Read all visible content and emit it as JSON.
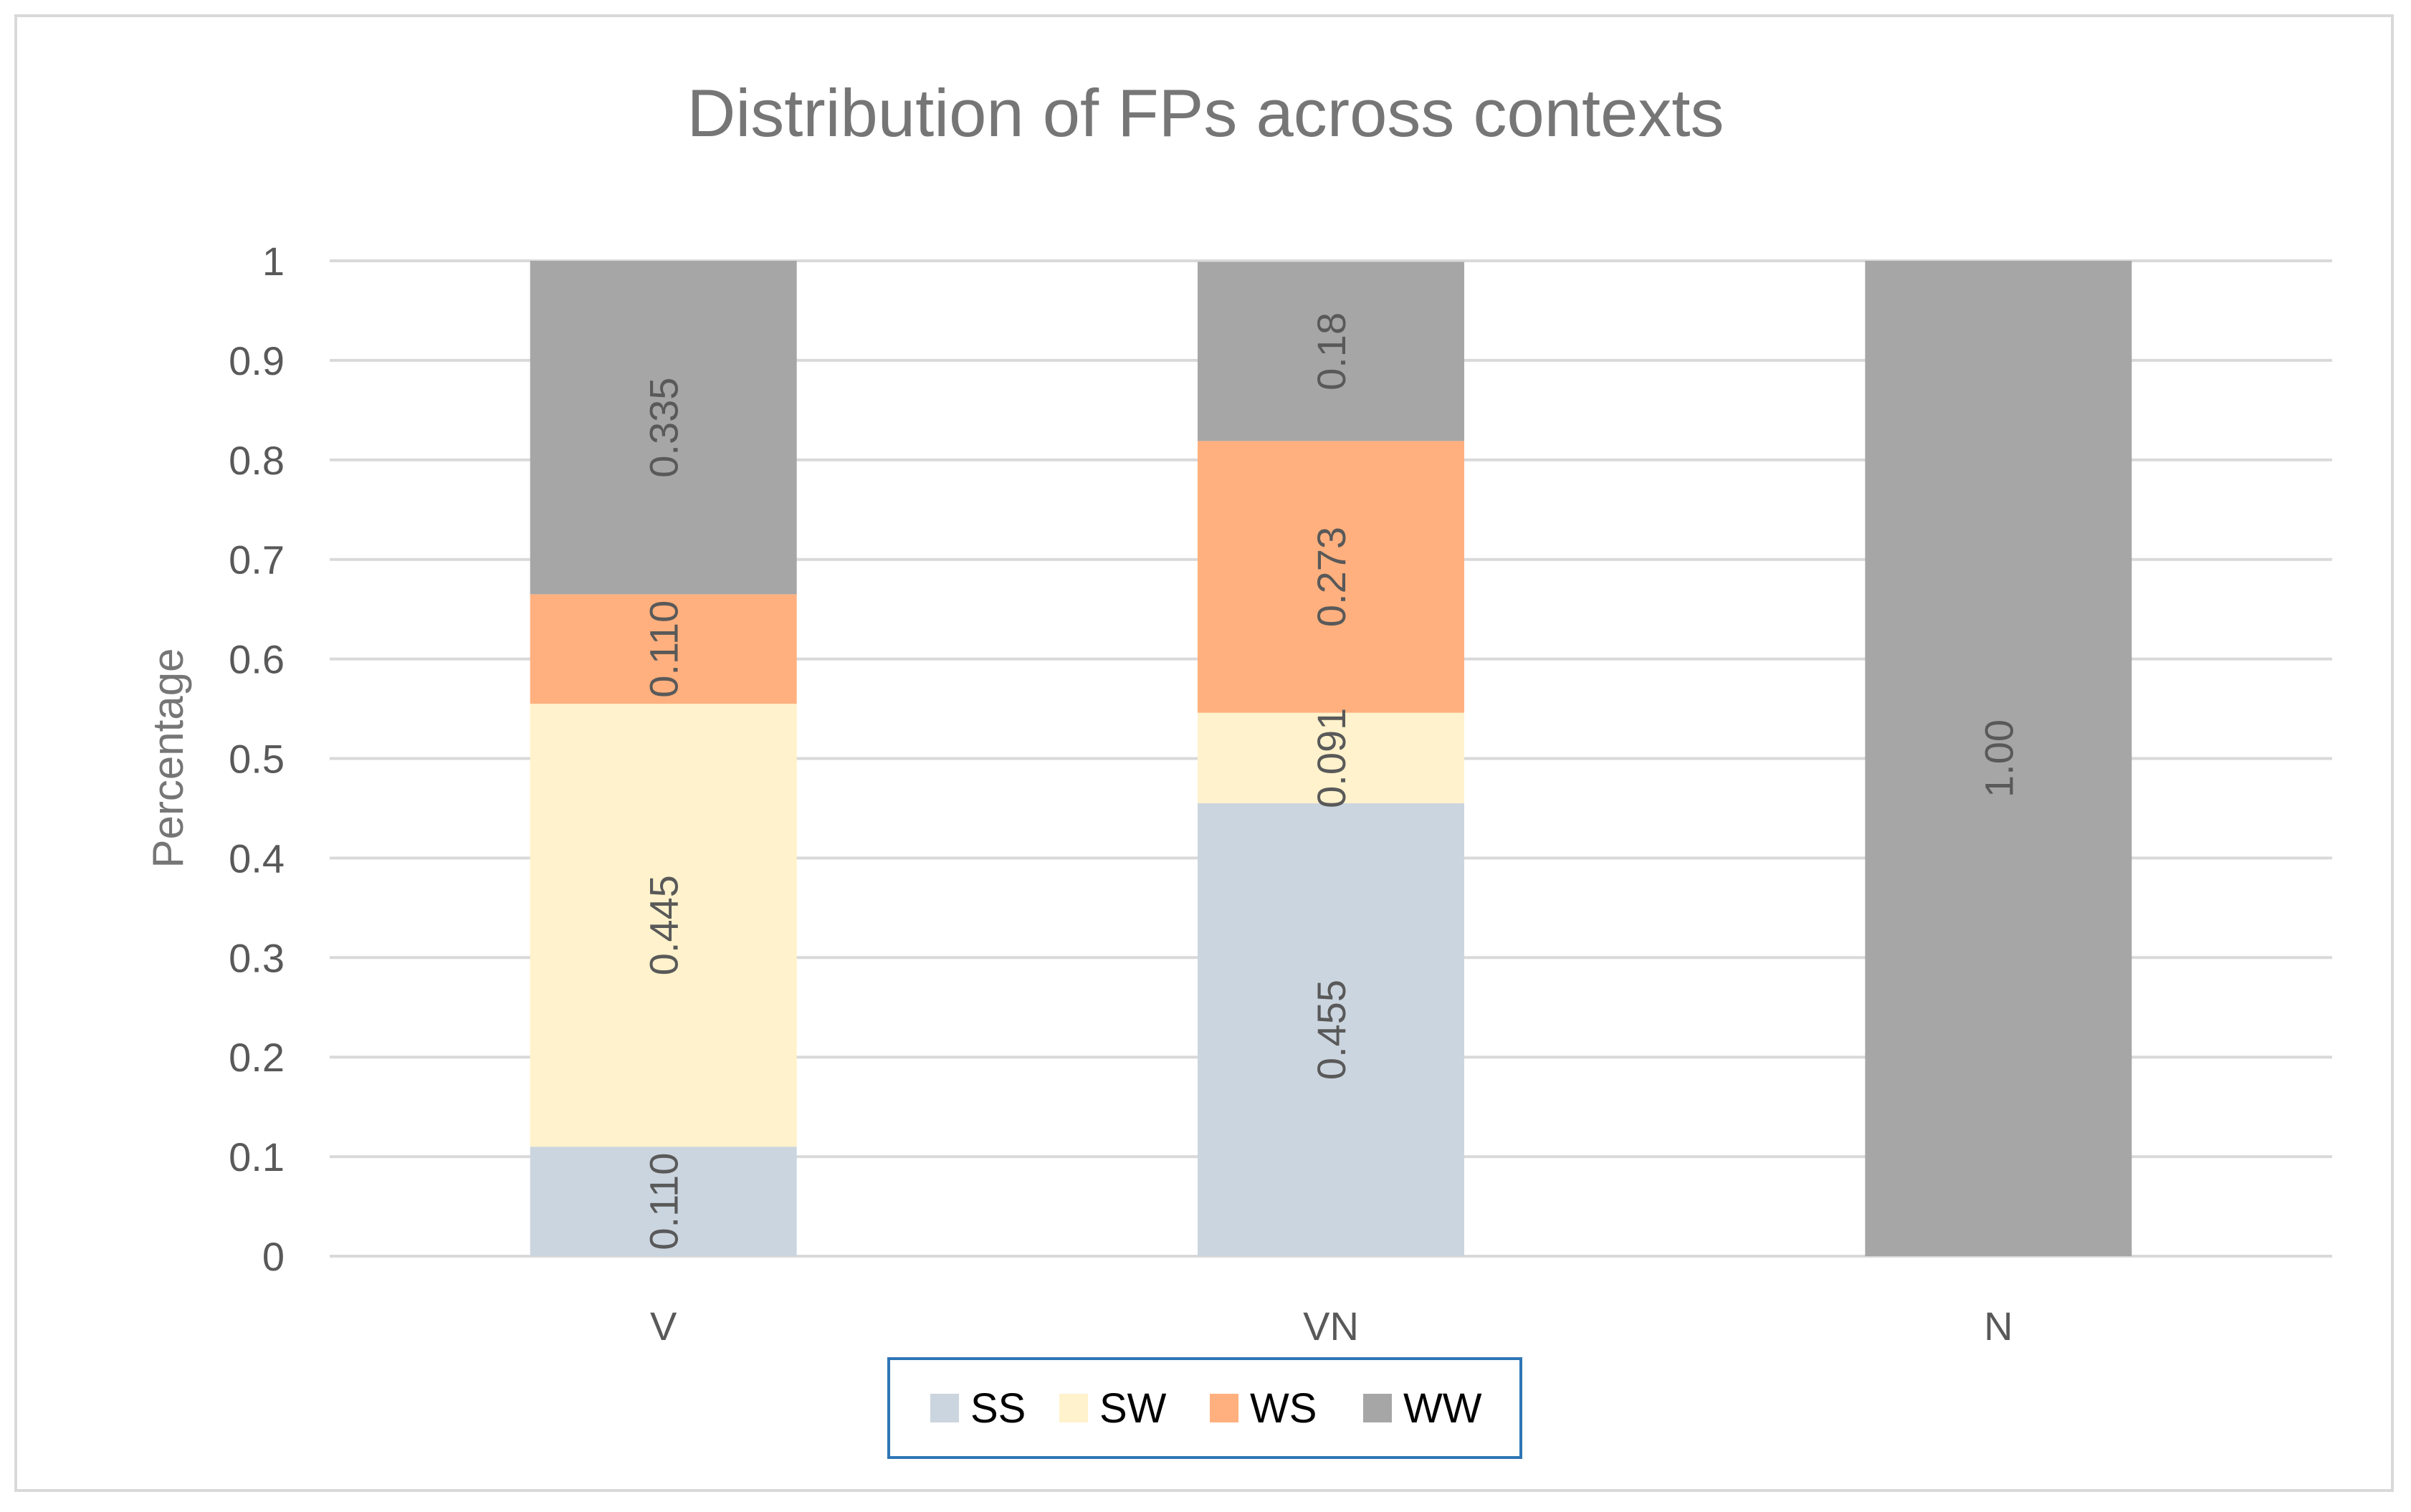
{
  "chart_data": {
    "type": "bar",
    "stacked": true,
    "title": "Distribution of FPs across contexts",
    "xlabel": "",
    "ylabel": "Percentage",
    "categories": [
      "V",
      "VN",
      "N"
    ],
    "ylim": [
      0,
      1
    ],
    "yticks": [
      "0",
      "0.1",
      "0.2",
      "0.3",
      "0.4",
      "0.5",
      "0.6",
      "0.7",
      "0.8",
      "0.9",
      "1"
    ],
    "grid": true,
    "legend_position": "bottom",
    "series": [
      {
        "name": "SS",
        "color": "#cbd5df",
        "values": [
          0.11,
          0.455,
          0
        ],
        "labels": [
          "0.110",
          "0.455",
          ""
        ]
      },
      {
        "name": "SW",
        "color": "#fff2cc",
        "values": [
          0.445,
          0.091,
          0
        ],
        "labels": [
          "0.445",
          "0.091",
          ""
        ]
      },
      {
        "name": "WS",
        "color": "#ffb07e",
        "values": [
          0.11,
          0.273,
          0
        ],
        "labels": [
          "0.110",
          "0.273",
          ""
        ]
      },
      {
        "name": "WW",
        "color": "#a6a6a6",
        "values": [
          0.335,
          0.18,
          1.0
        ],
        "labels": [
          "0.335",
          "0.18",
          "1.00"
        ]
      }
    ]
  }
}
